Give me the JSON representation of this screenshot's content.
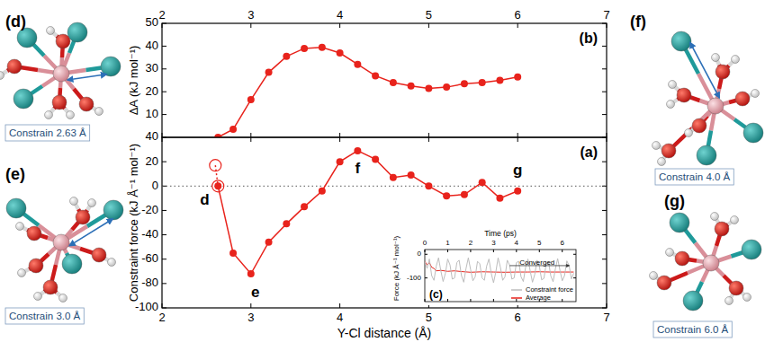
{
  "chart_data": [
    {
      "type": "line",
      "title": "(b)",
      "y_label": "ΔA (kJ mol⁻¹)",
      "x": [
        2.63,
        2.8,
        3.0,
        3.2,
        3.4,
        3.6,
        3.8,
        4.0,
        4.2,
        4.4,
        4.6,
        4.8,
        5.0,
        5.2,
        5.4,
        5.6,
        5.8,
        6.0
      ],
      "values": [
        0,
        3.5,
        16.5,
        28.5,
        35.5,
        39,
        39.5,
        37,
        32,
        27,
        24,
        22.5,
        21.5,
        22,
        23.5,
        24,
        25,
        26.5
      ],
      "color": "#e8231c",
      "marker": "circle",
      "line_style": "solid",
      "xlim": [
        2,
        7
      ],
      "xticks": [
        2,
        3,
        4,
        5,
        6,
        7
      ],
      "ylim": [
        0,
        50
      ],
      "yticks": [
        10,
        20,
        30,
        40,
        50
      ]
    },
    {
      "type": "line",
      "title": "(a)",
      "x_label": "Y-Cl distance (Å)",
      "y_label": "Constraint force (kJ Å⁻¹ mol⁻¹)",
      "series": [
        {
          "x": [
            2.63,
            2.8,
            3.0,
            3.2,
            3.4,
            3.6,
            3.8,
            4.0,
            4.2,
            4.4,
            4.6,
            4.8,
            5.0,
            5.2,
            5.4,
            5.6,
            5.8,
            6.0
          ],
          "values": [
            0,
            -55,
            -72,
            -46,
            -31,
            -17,
            -4,
            20,
            29,
            22,
            7,
            9,
            0,
            -8,
            -7,
            3,
            -10,
            -4
          ],
          "color": "#e8231c",
          "marker": "circle",
          "line_style": "solid"
        },
        {
          "x": [
            2.6,
            2.63
          ],
          "values": [
            17,
            0
          ],
          "color": "#e8231c",
          "marker": "open",
          "line_style": "dotted"
        }
      ],
      "reference_line": 0,
      "annotations": [
        {
          "text": "d",
          "x": 2.48,
          "y": -12
        },
        {
          "text": "e",
          "x": 3.05,
          "y": -88
        },
        {
          "text": "f",
          "x": 4.2,
          "y": 14
        },
        {
          "text": "g",
          "x": 6.0,
          "y": 12
        }
      ],
      "xlim": [
        2,
        7
      ],
      "xticks": [
        2,
        3,
        4,
        5,
        6,
        7
      ],
      "ylim": [
        -100,
        40
      ],
      "yticks": [
        -100,
        -80,
        -60,
        -40,
        -20,
        0,
        20,
        40
      ]
    },
    {
      "type": "line",
      "title": "(c)",
      "x_label": "Time (ps)",
      "y_label": "Force (kJ Å⁻¹ mol⁻¹)",
      "series": [
        {
          "name": "Constraint force",
          "color": "#bdbdbd",
          "line_style": "solid",
          "x": [
            0,
            0.1,
            0.2,
            0.3,
            0.4,
            0.5,
            0.6,
            0.7,
            0.8,
            0.9,
            1.0,
            1.1,
            1.2,
            1.3,
            1.4,
            1.5,
            1.6,
            1.7,
            1.8,
            1.9,
            2.0,
            2.1,
            2.2,
            2.3,
            2.4,
            2.5,
            2.6,
            2.7,
            2.8,
            2.9,
            3.0,
            3.1,
            3.2,
            3.3,
            3.4,
            3.5,
            3.6,
            3.7,
            3.8,
            3.9,
            4.0,
            4.1,
            4.2,
            4.3,
            4.4,
            4.5,
            4.6,
            4.7,
            4.8,
            4.9,
            5.0,
            5.1,
            5.2,
            5.3,
            5.4,
            5.5,
            5.6,
            5.7,
            5.8,
            5.9,
            6.0,
            6.1,
            6.2,
            6.3,
            6.4,
            6.5
          ],
          "values": [
            -30,
            -60,
            -20,
            -90,
            -110,
            -50,
            -15,
            -70,
            -115,
            -80,
            -20,
            -45,
            -105,
            -100,
            -35,
            -25,
            -90,
            -118,
            -60,
            -15,
            -65,
            -112,
            -95,
            -30,
            -40,
            -100,
            -110,
            -50,
            -20,
            -80,
            -120,
            -75,
            -15,
            -55,
            -110,
            -95,
            -25,
            -45,
            -105,
            -100,
            -35,
            -30,
            -95,
            -115,
            -55,
            -20,
            -70,
            -118,
            -85,
            -25,
            -50,
            -108,
            -102,
            -40,
            -30,
            -92,
            -116,
            -62,
            -18,
            -68,
            -112,
            -90,
            -28,
            -48,
            -104,
            -80
          ]
        },
        {
          "name": "Average",
          "color": "#e8231c",
          "line_style": "solid",
          "x": [
            0,
            0.1,
            0.2,
            0.3,
            0.4,
            0.5,
            0.7,
            1.0,
            1.3,
            1.6,
            2.0,
            2.5,
            3.0,
            3.5,
            4.0,
            4.5,
            5.0,
            5.5,
            6.0,
            6.5
          ],
          "values": [
            -30,
            -45,
            -35,
            -55,
            -60,
            -70,
            -68,
            -72,
            -70,
            -73,
            -76,
            -74,
            -75,
            -76,
            -75,
            -75,
            -74,
            -75,
            -75,
            -75
          ]
        }
      ],
      "annotations": [
        {
          "text": "Converged",
          "x": 4.9,
          "y": -38,
          "arrow": {
            "x": [
              3.7,
              6.3
            ],
            "y": -48
          }
        }
      ],
      "legend": "lower right",
      "xlim": [
        0,
        6.6
      ],
      "xticks": [
        0,
        1,
        2,
        3,
        4,
        5,
        6
      ],
      "ylim": [
        -200,
        20
      ],
      "yticks": [
        -100,
        0
      ]
    }
  ],
  "structures": [
    {
      "label": "(d)",
      "caption": "Constrain 2.63 Å"
    },
    {
      "label": "(e)",
      "caption": "Constrain 3.0 Å"
    },
    {
      "label": "(f)",
      "caption": "Constrain 4.0 Å"
    },
    {
      "label": "(g)",
      "caption": "Constrain 6.0 Å"
    }
  ]
}
